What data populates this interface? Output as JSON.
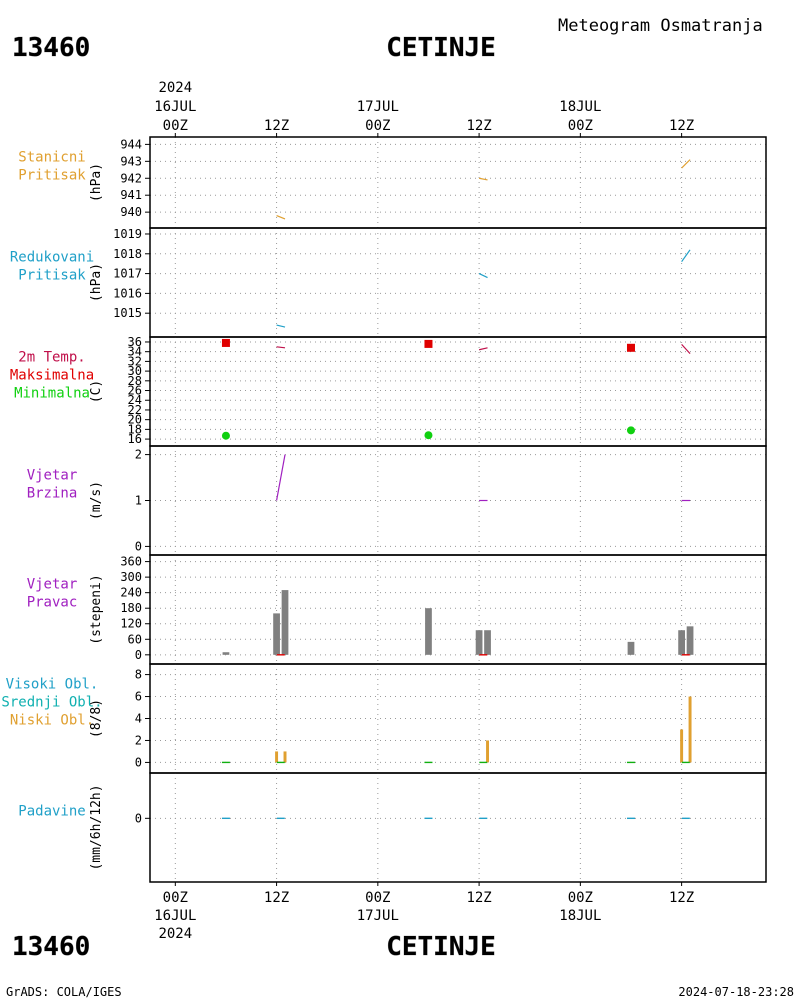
{
  "header": {
    "station_id": "13460",
    "station_name": "CETINJE",
    "product_title": "Meteogram Osmatranja"
  },
  "footer": {
    "station_id": "13460",
    "station_name": "CETINJE",
    "credit": "GrADS: COLA/IGES",
    "timestamp": "2024-07-18-23:28"
  },
  "colors": {
    "orange": "#E0A030",
    "teal": "#20A0C8",
    "crimson": "#C0104A",
    "red": "#E00000",
    "green": "#10D010",
    "purple": "#A020C0",
    "grey": "#808080",
    "cloud_teal": "#10B0B0"
  },
  "chart_data": {
    "type": "meteogram",
    "time_axis": {
      "year": "2024",
      "top_labels": [
        {
          "hour": 0,
          "time": "00Z",
          "date": "16JUL",
          "year": "2024"
        },
        {
          "hour": 12,
          "time": "12Z",
          "date": "",
          "year": ""
        },
        {
          "hour": 24,
          "time": "00Z",
          "date": "17JUL",
          "year": ""
        },
        {
          "hour": 36,
          "time": "12Z",
          "date": "",
          "year": ""
        },
        {
          "hour": 48,
          "time": "00Z",
          "date": "18JUL",
          "year": ""
        },
        {
          "hour": 60,
          "time": "12Z",
          "date": "",
          "year": ""
        }
      ],
      "bottom_labels": [
        {
          "hour": 0,
          "time": "00Z",
          "date": "16JUL",
          "year": "2024"
        },
        {
          "hour": 12,
          "time": "12Z",
          "date": "",
          "year": ""
        },
        {
          "hour": 24,
          "time": "00Z",
          "date": "17JUL",
          "year": ""
        },
        {
          "hour": 36,
          "time": "12Z",
          "date": "",
          "year": ""
        },
        {
          "hour": 48,
          "time": "00Z",
          "date": "18JUL",
          "year": ""
        },
        {
          "hour": 60,
          "time": "12Z",
          "date": "",
          "year": ""
        }
      ],
      "xlim_hours": [
        -3,
        70
      ],
      "grid": true
    },
    "panels": [
      {
        "id": "station_pressure",
        "labels": [
          {
            "text": "Stanicni",
            "color": "#E0A030"
          },
          {
            "text": "Pritisak",
            "color": "#E0A030"
          }
        ],
        "unit": "(hPa)",
        "ylim": [
          939.3,
          944.2
        ],
        "yticks": [
          940,
          941,
          942,
          943,
          944
        ],
        "lines": [
          {
            "color": "#E0A030",
            "points": [
              [
                12.0,
                939.8
              ],
              [
                13.0,
                939.6
              ]
            ]
          },
          {
            "color": "#E0A030",
            "points": [
              [
                36.0,
                942.0
              ],
              [
                37.0,
                941.9
              ]
            ]
          },
          {
            "color": "#E0A030",
            "points": [
              [
                60.0,
                942.6
              ],
              [
                61.0,
                943.1
              ]
            ]
          }
        ]
      },
      {
        "id": "reduced_pressure",
        "labels": [
          {
            "text": "Redukovani",
            "color": "#20A0C8"
          },
          {
            "text": "Pritisak",
            "color": "#20A0C8"
          }
        ],
        "unit": "(hPa)",
        "ylim": [
          1014.0,
          1019.1
        ],
        "yticks": [
          1015,
          1016,
          1017,
          1018,
          1019
        ],
        "lines": [
          {
            "color": "#20A0C8",
            "points": [
              [
                12.0,
                1014.4
              ],
              [
                13.0,
                1014.3
              ]
            ]
          },
          {
            "color": "#20A0C8",
            "points": [
              [
                36.0,
                1017.0
              ],
              [
                37.0,
                1016.8
              ]
            ]
          },
          {
            "color": "#20A0C8",
            "points": [
              [
                60.0,
                1017.6
              ],
              [
                61.0,
                1018.2
              ]
            ]
          }
        ]
      },
      {
        "id": "temperature",
        "labels": [
          {
            "text": "2m Temp.",
            "color": "#C0104A"
          },
          {
            "text": "Maksimalna",
            "color": "#E00000"
          },
          {
            "text": "Minimalna",
            "color": "#10D010"
          }
        ],
        "unit": "(C)",
        "ylim": [
          15.4,
          36.2
        ],
        "yticks": [
          16,
          18,
          20,
          22,
          24,
          26,
          28,
          30,
          32,
          34,
          36
        ],
        "lines": [
          {
            "color": "#C0104A",
            "points": [
              [
                12.0,
                35.0
              ],
              [
                13.0,
                34.8
              ]
            ]
          },
          {
            "color": "#C0104A",
            "points": [
              [
                36.0,
                34.4
              ],
              [
                37.0,
                34.8
              ]
            ]
          },
          {
            "color": "#C0104A",
            "points": [
              [
                60.0,
                35.5
              ],
              [
                61.0,
                33.6
              ]
            ]
          }
        ],
        "max_points": [
          [
            6.0,
            35.8
          ],
          [
            30.0,
            35.6
          ],
          [
            54.0,
            34.8
          ]
        ],
        "min_points": [
          [
            6.0,
            16.7
          ],
          [
            30.0,
            16.8
          ],
          [
            54.0,
            17.8
          ]
        ]
      },
      {
        "id": "wind_speed",
        "labels": [
          {
            "text": "Vjetar",
            "color": "#A020C0"
          },
          {
            "text": "Brzina",
            "color": "#A020C0"
          }
        ],
        "unit": "(m/s)",
        "ylim": [
          -0.1,
          2.1
        ],
        "yticks": [
          0,
          1,
          2
        ],
        "lines": [
          {
            "color": "#A020C0",
            "points": [
              [
                12.0,
                1.0
              ],
              [
                13.0,
                2.0
              ]
            ]
          },
          {
            "color": "#A020C0",
            "points": [
              [
                36.0,
                1.0
              ],
              [
                37.0,
                1.0
              ]
            ]
          },
          {
            "color": "#A020C0",
            "points": [
              [
                60.0,
                1.0
              ],
              [
                61.0,
                1.0
              ]
            ]
          }
        ]
      },
      {
        "id": "wind_direction",
        "labels": [
          {
            "text": "Vjetar",
            "color": "#A020C0"
          },
          {
            "text": "Pravac",
            "color": "#A020C0"
          }
        ],
        "unit": "(stepeni)",
        "ylim": [
          -20,
          370
        ],
        "yticks": [
          0,
          60,
          120,
          180,
          240,
          300,
          360
        ],
        "bar_width_hours": 0.8,
        "bars": [
          {
            "hour": 6,
            "value": 10,
            "color": "#808080"
          },
          {
            "hour": 12,
            "value": 160,
            "color": "#808080"
          },
          {
            "hour": 13,
            "value": 250,
            "color": "#808080"
          },
          {
            "hour": 30,
            "value": 180,
            "color": "#808080"
          },
          {
            "hour": 36,
            "value": 95,
            "color": "#808080"
          },
          {
            "hour": 37,
            "value": 95,
            "color": "#808080"
          },
          {
            "hour": 54,
            "value": 50,
            "color": "#808080"
          },
          {
            "hour": 60,
            "value": 95,
            "color": "#808080"
          },
          {
            "hour": 61,
            "value": 110,
            "color": "#808080"
          }
        ],
        "marks": [
          {
            "hour": 12.5,
            "value": 0,
            "color": "#E00000"
          },
          {
            "hour": 36.5,
            "value": 0,
            "color": "#E00000"
          },
          {
            "hour": 60.5,
            "value": 0,
            "color": "#E00000"
          }
        ]
      },
      {
        "id": "clouds",
        "labels": [
          {
            "text": "Visoki Obl.",
            "color": "#20A0C8"
          },
          {
            "text": "Srednji Obl.",
            "color": "#10B0B0"
          },
          {
            "text": "Niski Obl.",
            "color": "#E0A030"
          }
        ],
        "unit": "(8/8)",
        "ylim": [
          -0.6,
          8.6
        ],
        "yticks": [
          0,
          2,
          4,
          6,
          8
        ],
        "bar_width_hours": 0.35,
        "bars": [
          {
            "hour": 12.0,
            "value": 1,
            "color": "#E0A030"
          },
          {
            "hour": 13.0,
            "value": 1,
            "color": "#E0A030"
          },
          {
            "hour": 37.0,
            "value": 2,
            "color": "#E0A030"
          },
          {
            "hour": 60.0,
            "value": 3,
            "color": "#E0A030"
          },
          {
            "hour": 61.0,
            "value": 6,
            "color": "#E0A030"
          }
        ],
        "marks": [
          {
            "hour": 6,
            "value": 0,
            "color": "#10B010"
          },
          {
            "hour": 12.5,
            "value": 0,
            "color": "#10B010"
          },
          {
            "hour": 30,
            "value": 0,
            "color": "#10B010"
          },
          {
            "hour": 36.5,
            "value": 0,
            "color": "#10B010"
          },
          {
            "hour": 54,
            "value": 0,
            "color": "#10B010"
          },
          {
            "hour": 60.5,
            "value": 0,
            "color": "#10B010"
          }
        ]
      },
      {
        "id": "precipitation",
        "labels": [
          {
            "text": "Padavine",
            "color": "#20A0C8"
          }
        ],
        "unit": "(mm/6h/12h)",
        "ylim": [
          -0.65,
          0.45
        ],
        "yticks": [
          0
        ],
        "marks": [
          {
            "hour": 6,
            "value": 0,
            "color": "#20A0C8"
          },
          {
            "hour": 12.5,
            "value": 0,
            "color": "#20A0C8"
          },
          {
            "hour": 30,
            "value": 0,
            "color": "#20A0C8"
          },
          {
            "hour": 36.5,
            "value": 0,
            "color": "#20A0C8"
          },
          {
            "hour": 54,
            "value": 0,
            "color": "#20A0C8"
          },
          {
            "hour": 60.5,
            "value": 0,
            "color": "#20A0C8"
          }
        ]
      }
    ]
  }
}
